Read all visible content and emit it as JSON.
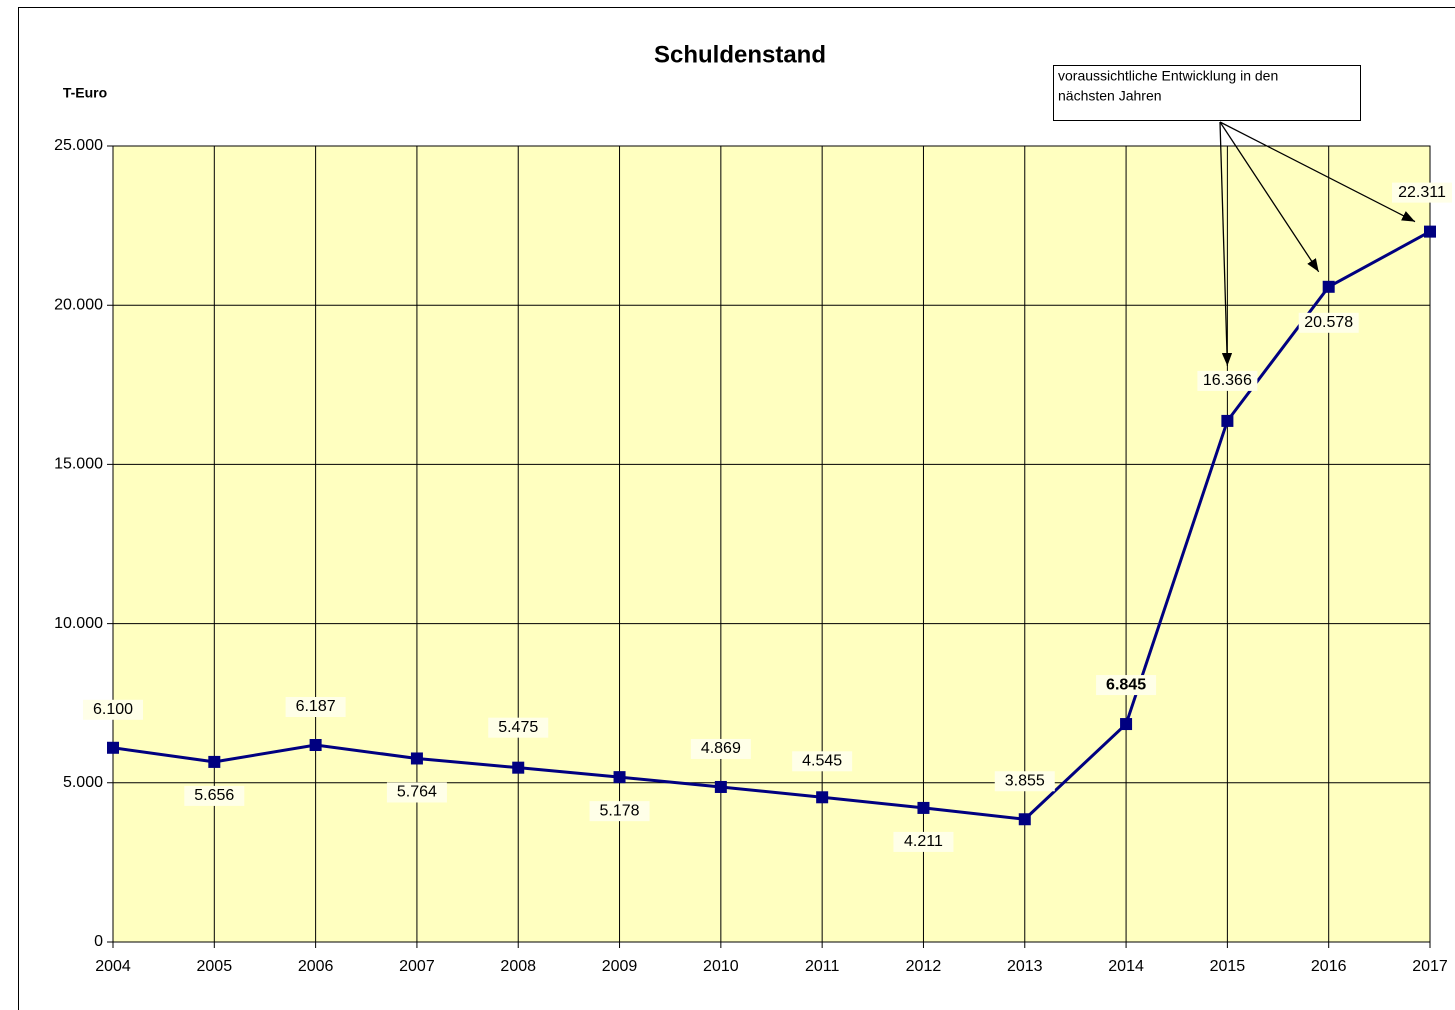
{
  "chart_data": {
    "type": "line",
    "title": "Schuldenstand",
    "y_label": "T-Euro",
    "annotation": [
      "voraussichtliche Entwicklung in den",
      "nächsten Jahren"
    ],
    "x": [
      2004,
      2005,
      2006,
      2007,
      2008,
      2009,
      2010,
      2011,
      2012,
      2013,
      2014,
      2015,
      2016,
      2017
    ],
    "xlim": [
      2004,
      2017
    ],
    "xticks": [
      2004,
      2005,
      2006,
      2007,
      2008,
      2009,
      2010,
      2011,
      2012,
      2013,
      2014,
      2015,
      2016,
      2017
    ],
    "ylim": [
      0,
      25000
    ],
    "yticks": [
      0,
      {
        "value": 5000,
        "label": "5.000"
      },
      {
        "value": 10000,
        "label": "10.000"
      },
      {
        "value": 15000,
        "label": "15.000"
      },
      {
        "value": 20000,
        "label": "20.000"
      },
      {
        "value": 25000,
        "label": "25.000"
      }
    ],
    "grid": true,
    "series": [
      {
        "color": "#000080",
        "values": [
          6100,
          5656,
          6187,
          5764,
          5475,
          5178,
          4869,
          4545,
          4211,
          3855,
          6845,
          16366,
          20578,
          22311
        ],
        "value_labels": [
          "6.100",
          "5.656",
          "6.187",
          "5.764",
          "5.475",
          "5.178",
          "4.869",
          "4.545",
          "4.211",
          "3.855",
          "6.845",
          "16.366",
          "20.578",
          "22.311"
        ]
      }
    ]
  }
}
